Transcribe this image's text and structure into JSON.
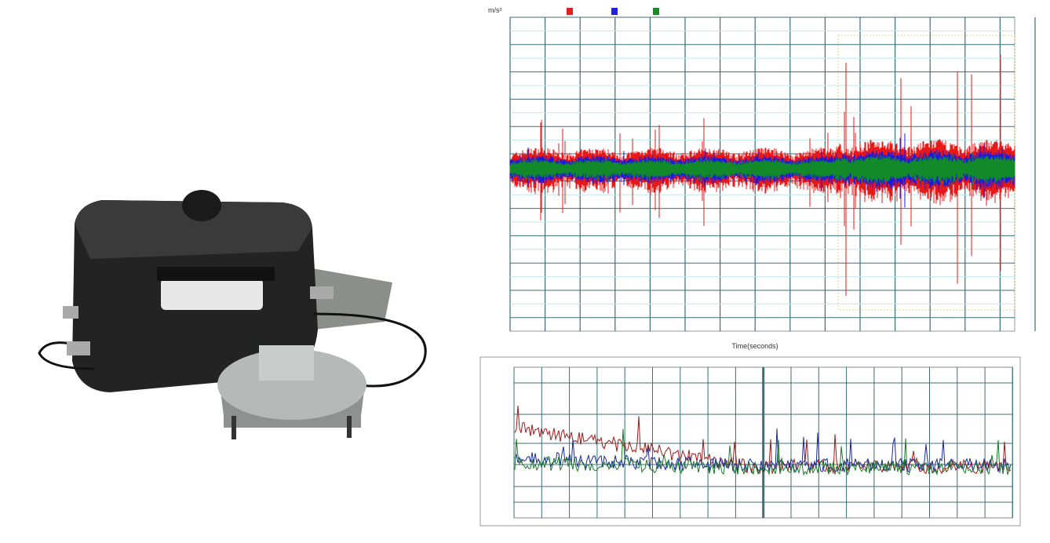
{
  "top_chart": {
    "y_unit": "m/s²",
    "x_label": "Time(seconds)"
  }
}
